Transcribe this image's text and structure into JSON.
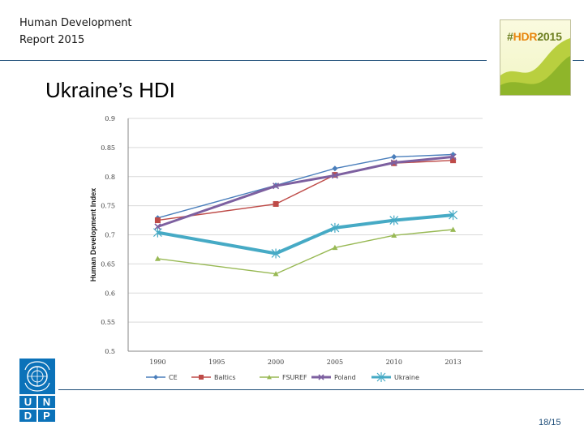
{
  "header": {
    "line1": "Human Development",
    "line2": "Report 2015",
    "badge_hash": "#",
    "badge_hdr": "HDR",
    "badge_year": "2015"
  },
  "title": "Ukraine’s HDI",
  "footer": {
    "org_letters": [
      "U",
      "N",
      "D",
      "P"
    ],
    "page": "18/15"
  },
  "colors": {
    "rule": "#1f4e79",
    "undp_blue": "#0b72b9",
    "badge_green": "#6b7d1e",
    "badge_accent": "#e8850c"
  },
  "chart_data": {
    "type": "line",
    "title": "",
    "xlabel": "",
    "ylabel": "Human Development Index",
    "x": [
      "1990",
      "1995",
      "2000",
      "2005",
      "2010",
      "2013"
    ],
    "ylim": [
      0.5,
      0.9
    ],
    "yticks": [
      "0.5",
      "0.55",
      "0.6",
      "0.65",
      "0.7",
      "0.75",
      "0.8",
      "0.85",
      "0.9"
    ],
    "grid": true,
    "legend_position": "bottom",
    "series": [
      {
        "name": "CE",
        "color": "#4a7ebb",
        "marker": "diamond",
        "values": [
          0.729,
          null,
          0.785,
          0.814,
          0.834,
          0.838
        ]
      },
      {
        "name": "Baltics",
        "color": "#be4b48",
        "marker": "square",
        "values": [
          0.725,
          null,
          0.753,
          0.803,
          0.823,
          0.828
        ]
      },
      {
        "name": "FSUREF",
        "color": "#98b954",
        "marker": "triangle",
        "values": [
          0.659,
          null,
          0.633,
          0.678,
          0.699,
          0.709
        ]
      },
      {
        "name": "Poland",
        "color": "#7d60a0",
        "marker": "x",
        "values": [
          0.714,
          null,
          0.784,
          0.802,
          0.824,
          0.834
        ]
      },
      {
        "name": "Ukraine",
        "color": "#46aac5",
        "marker": "star",
        "values": [
          0.704,
          null,
          0.668,
          0.712,
          0.725,
          0.734
        ]
      }
    ]
  }
}
